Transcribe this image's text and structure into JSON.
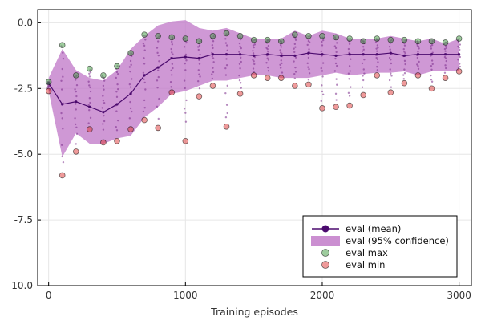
{
  "chart_data": {
    "type": "line",
    "title": "",
    "xlabel": "Training episodes",
    "ylabel": "",
    "xlim": [
      -80,
      3090
    ],
    "ylim": [
      -10,
      0.5
    ],
    "xticks": [
      0,
      1000,
      2000,
      3000
    ],
    "xtick_labels": [
      "0",
      "1000",
      "2000",
      "3000"
    ],
    "yticks": [
      0,
      -2.5,
      -5,
      -7.5,
      -10
    ],
    "ytick_labels": [
      "0.0",
      "-2.5",
      "-5.0",
      "-7.5",
      "-10.0"
    ],
    "grid": true,
    "legend_position": "bottom-right",
    "x": [
      0,
      100,
      200,
      300,
      400,
      500,
      600,
      700,
      800,
      900,
      1000,
      1100,
      1200,
      1300,
      1400,
      1500,
      1600,
      1700,
      1800,
      1900,
      2000,
      2100,
      2200,
      2300,
      2400,
      2500,
      2600,
      2700,
      2800,
      2900,
      3000
    ],
    "series": [
      {
        "name": "eval (mean)",
        "kind": "line",
        "color": "#4b0a6e",
        "values": [
          -2.3,
          -3.1,
          -3.0,
          -3.2,
          -3.4,
          -3.1,
          -2.7,
          -2.0,
          -1.7,
          -1.35,
          -1.3,
          -1.35,
          -1.2,
          -1.2,
          -1.2,
          -1.25,
          -1.2,
          -1.25,
          -1.25,
          -1.15,
          -1.2,
          -1.25,
          -1.2,
          -1.2,
          -1.2,
          -1.15,
          -1.25,
          -1.2,
          -1.2,
          -1.2,
          -1.2
        ]
      },
      {
        "name": "eval (95% confidence)",
        "kind": "band",
        "color": "#c27bc9",
        "upper": [
          -2.1,
          -1.0,
          -1.8,
          -2.1,
          -2.2,
          -1.8,
          -1.0,
          -0.5,
          -0.1,
          0.05,
          0.1,
          -0.2,
          -0.3,
          -0.2,
          -0.4,
          -0.6,
          -0.6,
          -0.6,
          -0.3,
          -0.5,
          -0.3,
          -0.4,
          -0.6,
          -0.6,
          -0.6,
          -0.5,
          -0.6,
          -0.7,
          -0.6,
          -0.8,
          -0.6
        ],
        "lower": [
          -2.6,
          -5.1,
          -4.2,
          -4.6,
          -4.6,
          -4.4,
          -4.3,
          -3.6,
          -3.2,
          -2.7,
          -2.6,
          -2.4,
          -2.2,
          -2.2,
          -2.1,
          -2.0,
          -2.0,
          -2.1,
          -2.1,
          -2.1,
          -2.0,
          -1.9,
          -2.0,
          -1.95,
          -1.9,
          -1.9,
          -1.85,
          -2.0,
          -1.85,
          -1.85,
          -1.85
        ]
      },
      {
        "name": "eval max",
        "kind": "scatter",
        "color": "#3e9a3e",
        "values": [
          -2.25,
          -0.85,
          -2.0,
          -1.75,
          -2.0,
          -1.65,
          -1.15,
          -0.45,
          -0.5,
          -0.55,
          -0.6,
          -0.7,
          -0.5,
          -0.4,
          -0.5,
          -0.65,
          -0.65,
          -0.7,
          -0.45,
          -0.5,
          -0.5,
          -0.55,
          -0.6,
          -0.7,
          -0.6,
          -0.65,
          -0.65,
          -0.7,
          -0.7,
          -0.75,
          -0.6
        ]
      },
      {
        "name": "eval min",
        "kind": "scatter",
        "color": "#e03535",
        "values": [
          -2.6,
          -5.8,
          -4.9,
          -4.05,
          -4.55,
          -4.5,
          -4.05,
          -3.7,
          -4.0,
          -2.65,
          -4.5,
          -2.8,
          -2.4,
          -3.95,
          -2.7,
          -2.0,
          -2.1,
          -2.1,
          -2.4,
          -2.35,
          -3.25,
          -3.2,
          -3.15,
          -2.75,
          -2.0,
          -2.65,
          -2.3,
          -2.0,
          -2.5,
          -2.1,
          -1.85
        ]
      }
    ]
  }
}
